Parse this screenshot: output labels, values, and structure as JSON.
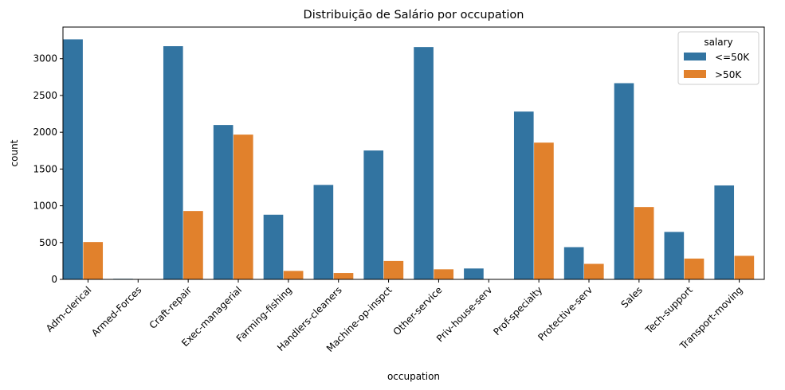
{
  "chart_data": {
    "type": "bar",
    "title": "Distribuição de Salário por occupation",
    "xlabel": "occupation",
    "ylabel": "count",
    "ylim": [
      0,
      3430
    ],
    "yticks": [
      0,
      500,
      1000,
      1500,
      2000,
      2500,
      3000
    ],
    "categories": [
      "Adm-clerical",
      "Armed-Forces",
      "Craft-repair",
      "Exec-managerial",
      "Farming-fishing",
      "Handlers-cleaners",
      "Machine-op-inspct",
      "Other-service",
      "Priv-house-serv",
      "Prof-specialty",
      "Protective-serv",
      "Sales",
      "Tech-support",
      "Transport-moving"
    ],
    "legend": {
      "title": "salary",
      "placement": "top-right"
    },
    "grid": false,
    "series": [
      {
        "name": "<=50K",
        "color": "#3274a1",
        "values": [
          3263,
          8,
          3170,
          2098,
          879,
          1284,
          1752,
          3158,
          148,
          2281,
          438,
          2667,
          645,
          1277
        ]
      },
      {
        "name": ">50K",
        "color": "#e1812c",
        "values": [
          507,
          1,
          929,
          1968,
          115,
          86,
          250,
          137,
          1,
          1859,
          211,
          983,
          283,
          320
        ]
      }
    ]
  }
}
